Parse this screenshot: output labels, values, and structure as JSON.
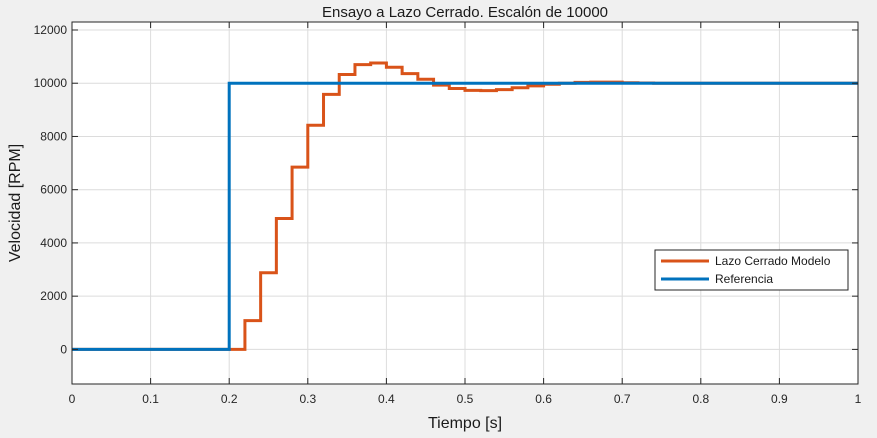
{
  "chart_data": {
    "type": "line",
    "title": "Ensayo a Lazo Cerrado. Escalón de 10000",
    "xlabel": "Tiempo [s]",
    "ylabel": "Velocidad [RPM]",
    "xlim": [
      0,
      1
    ],
    "ylim": [
      -1300,
      12300
    ],
    "xticks": [
      "0",
      "0.1",
      "0.2",
      "0.3",
      "0.4",
      "0.5",
      "0.6",
      "0.7",
      "0.8",
      "0.9",
      "1"
    ],
    "yticks": [
      "0",
      "2000",
      "4000",
      "6000",
      "8000",
      "10000",
      "12000"
    ],
    "grid": true,
    "legend_position": "center-right",
    "series": [
      {
        "name": "Lazo Cerrado Modelo",
        "color": "#d95319",
        "style": "stairs",
        "x": [
          0,
          0.2,
          0.22,
          0.24,
          0.26,
          0.28,
          0.3,
          0.32,
          0.34,
          0.36,
          0.38,
          0.4,
          0.42,
          0.44,
          0.46,
          0.48,
          0.5,
          0.52,
          0.54,
          0.56,
          0.58,
          0.6,
          0.62,
          0.64,
          0.66,
          0.68,
          0.7,
          0.72,
          0.74,
          1.0
        ],
        "y": [
          0,
          0,
          1080,
          2880,
          4920,
          6850,
          8420,
          9580,
          10330,
          10700,
          10760,
          10600,
          10360,
          10150,
          9930,
          9800,
          9730,
          9720,
          9760,
          9830,
          9900,
          9960,
          10000,
          10030,
          10040,
          10040,
          10020,
          10010,
          10000,
          10000
        ]
      },
      {
        "name": "Referencia",
        "color": "#0072bd",
        "style": "stairs",
        "x": [
          0,
          0.2,
          1.0
        ],
        "y": [
          0,
          10000,
          10000
        ]
      }
    ]
  }
}
